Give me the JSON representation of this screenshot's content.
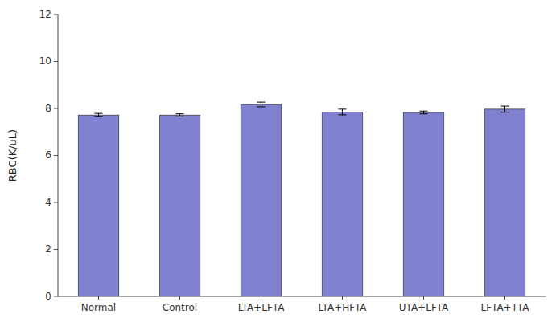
{
  "chart_data": {
    "type": "bar",
    "categories": [
      "Normal",
      "Control",
      "LTA+LFTA",
      "LTA+HFTA",
      "UTA+LFTA",
      "LFTA+TTA"
    ],
    "values": [
      7.72,
      7.72,
      8.17,
      7.85,
      7.83,
      7.97
    ],
    "errors": [
      0.07,
      0.05,
      0.1,
      0.12,
      0.06,
      0.13
    ],
    "color": "#8080d0",
    "ylabel": "RBC(K/uL)",
    "ylim": [
      0,
      12
    ],
    "yticks": [
      0,
      2,
      4,
      6,
      8,
      10,
      12
    ],
    "grid": false
  }
}
